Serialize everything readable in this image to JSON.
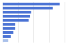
{
  "chart_data": {
    "type": "bar",
    "orientation": "horizontal",
    "categories": [
      null,
      null,
      null,
      null,
      null,
      null,
      null,
      null,
      null,
      null
    ],
    "values": [
      92,
      81,
      46,
      44,
      42,
      20,
      20,
      17,
      13,
      9
    ],
    "colors": [
      "#4a72d4",
      "#4a72d4",
      "#4a72d4",
      "#4a72d4",
      "#4a72d4",
      "#4a72d4",
      "#4a72d4",
      "#4a72d4",
      "#4a72d4",
      "#a9c0ea"
    ],
    "xlim": [
      0,
      100
    ],
    "xticks": [
      0,
      25,
      50,
      75,
      100
    ],
    "grid": true,
    "tick_labels": false
  }
}
